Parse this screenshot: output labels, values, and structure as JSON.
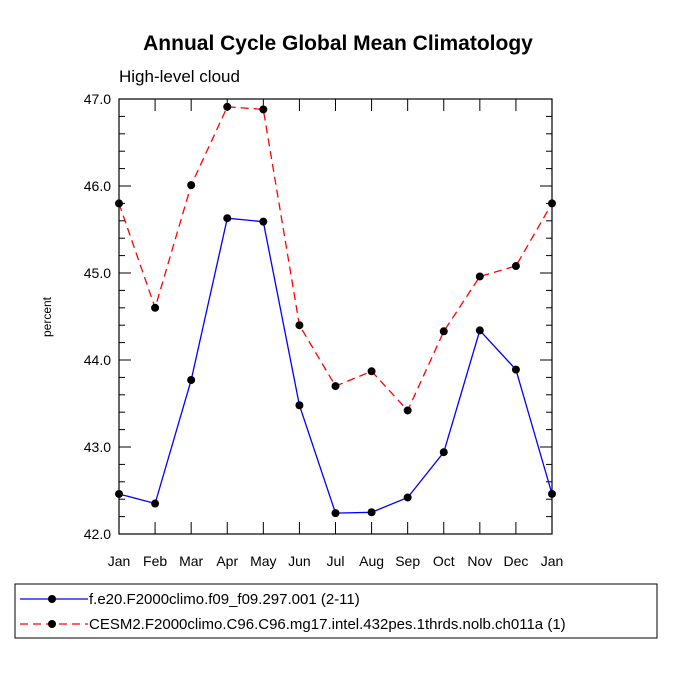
{
  "chart_data": {
    "type": "line",
    "title": "Annual Cycle Global Mean Climatology",
    "subtitle": "High-level cloud",
    "xlabel": "",
    "ylabel": "percent",
    "categories": [
      "Jan",
      "Feb",
      "Mar",
      "Apr",
      "May",
      "Jun",
      "Jul",
      "Aug",
      "Sep",
      "Oct",
      "Nov",
      "Dec",
      "Jan"
    ],
    "ylim": [
      42.0,
      47.0
    ],
    "yticks": [
      "42.0",
      "43.0",
      "44.0",
      "45.0",
      "46.0",
      "47.0"
    ],
    "grid": false,
    "legend_position": "bottom",
    "series": [
      {
        "name": "f.e20.F2000climo.f09_f09.297.001 (2-11)",
        "color": "#0000ff",
        "dash": "solid",
        "values": [
          42.46,
          42.35,
          43.77,
          45.63,
          45.59,
          43.48,
          42.24,
          42.25,
          42.42,
          42.94,
          44.34,
          43.89,
          42.46
        ]
      },
      {
        "name": "CESM2.F2000climo.C96.C96.mg17.intel.432pes.1thrds.nolb.ch011a (1)",
        "color": "#ff0000",
        "dash": "dashed",
        "values": [
          45.8,
          44.6,
          46.01,
          46.91,
          46.88,
          44.4,
          43.7,
          43.87,
          43.42,
          44.33,
          44.96,
          45.08,
          45.8
        ]
      }
    ]
  }
}
